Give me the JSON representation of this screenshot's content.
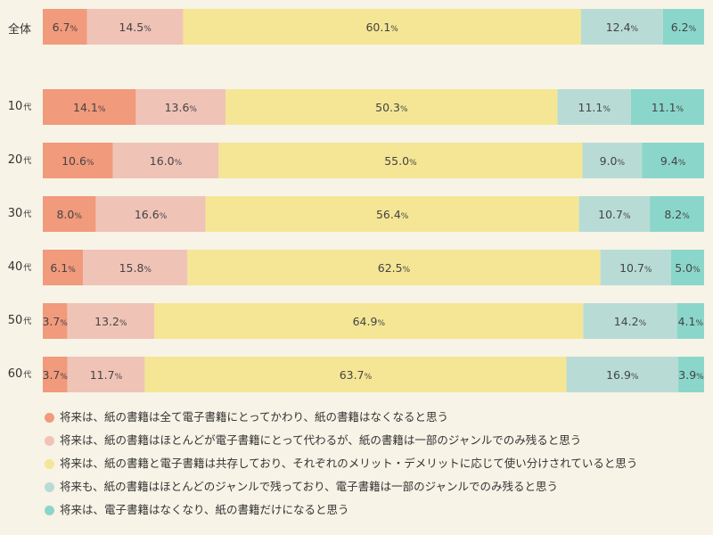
{
  "chart_data": {
    "type": "bar",
    "orientation": "horizontal-stacked-100",
    "title": "",
    "xlabel": "",
    "ylabel": "",
    "categories": [
      {
        "num": "",
        "unit": "",
        "text": "全体"
      },
      {
        "num": "10",
        "unit": "代",
        "text": ""
      },
      {
        "num": "20",
        "unit": "代",
        "text": ""
      },
      {
        "num": "30",
        "unit": "代",
        "text": ""
      },
      {
        "num": "40",
        "unit": "代",
        "text": ""
      },
      {
        "num": "50",
        "unit": "代",
        "text": ""
      },
      {
        "num": "60",
        "unit": "代",
        "text": ""
      }
    ],
    "series": [
      {
        "name": "将来は、紙の書籍は全て電子書籍にとってかわり、紙の書籍はなくなると思う",
        "color": "#f19a7c",
        "values": [
          6.7,
          14.1,
          10.6,
          8.0,
          6.1,
          3.7,
          3.7
        ]
      },
      {
        "name": "将来は、紙の書籍はほとんどが電子書籍にとって代わるが、紙の書籍は一部のジャンルでのみ残ると思う",
        "color": "#f0c3b7",
        "values": [
          14.5,
          13.6,
          16.0,
          16.6,
          15.8,
          13.2,
          11.7
        ]
      },
      {
        "name": "将来は、紙の書籍と電子書籍は共存しており、それぞれのメリット・デメリットに応じて使い分けされていると思う",
        "color": "#f5e695",
        "values": [
          60.1,
          50.3,
          55.0,
          56.4,
          62.5,
          64.9,
          63.7
        ]
      },
      {
        "name": "将来も、紙の書籍はほとんどのジャンルで残っており、電子書籍は一部のジャンルでのみ残ると思う",
        "color": "#b8dcd5",
        "values": [
          12.4,
          11.1,
          9.0,
          10.7,
          10.7,
          14.2,
          16.9
        ]
      },
      {
        "name": "将来は、電子書籍はなくなり、紙の書籍だけになると思う",
        "color": "#8bd6cb",
        "values": [
          6.2,
          11.1,
          9.4,
          8.2,
          5.0,
          4.1,
          3.9
        ]
      }
    ],
    "value_unit": "%",
    "grid": false,
    "legend_position": "bottom"
  }
}
